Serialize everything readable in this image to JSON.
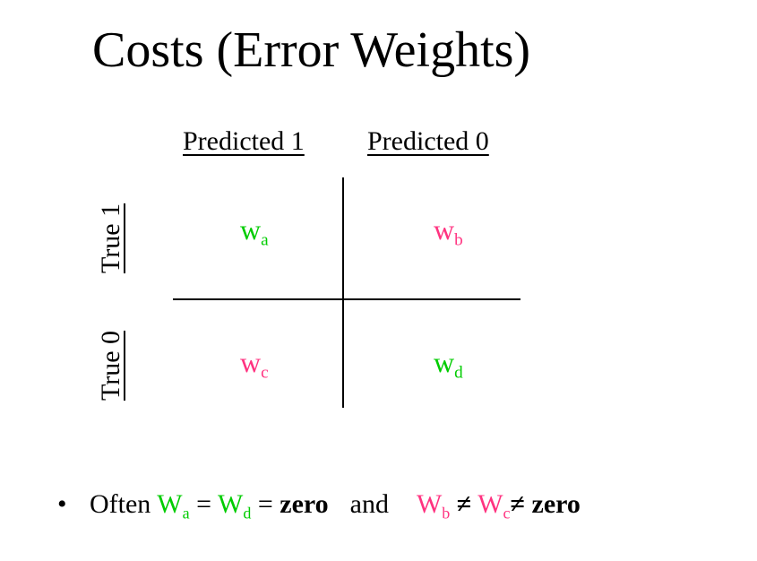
{
  "title": "Costs (Error Weights)",
  "matrix": {
    "col_headers": [
      "Predicted 1",
      "Predicted 0"
    ],
    "row_headers": [
      "True 1",
      "True 0"
    ],
    "cells": {
      "a": {
        "base": "w",
        "sub": "a",
        "color": "#00cc00"
      },
      "b": {
        "base": "w",
        "sub": "b",
        "color": "#ff3380"
      },
      "c": {
        "base": "w",
        "sub": "c",
        "color": "#ff3380"
      },
      "d": {
        "base": "w",
        "sub": "d",
        "color": "#00cc00"
      }
    }
  },
  "bullet": {
    "marker": "•",
    "often": "Often",
    "wa_base": "W",
    "wa_sub": "a",
    "eq1": "=",
    "wd_base": "W",
    "wd_sub": "d",
    "eq2": "=",
    "zero1": "zero",
    "and": "and",
    "wb_base": "W",
    "wb_sub": "b",
    "neq1": "≠",
    "wc_base": "W",
    "wc_sub": "c",
    "neq2": "≠",
    "zero2": "zero"
  },
  "colors": {
    "green": "#00cc00",
    "pink": "#ff3380"
  }
}
